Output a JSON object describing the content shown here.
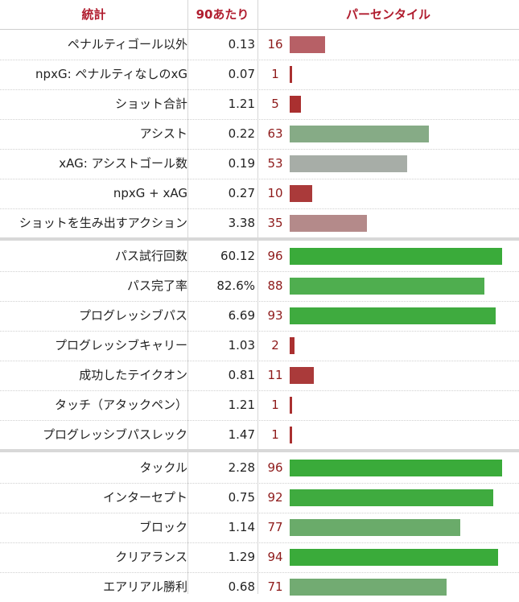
{
  "header": {
    "stat": "統計",
    "per90": "90あたり",
    "percentile": "パーセンタイル"
  },
  "colors": {
    "header_text": "#b01c2e",
    "percentile_text": "#8e1a1a"
  },
  "sections": [
    {
      "rows": [
        {
          "stat": "ペナルティゴール以外",
          "per90": "0.13",
          "percentile": 16,
          "bar_color": "#b76066"
        },
        {
          "stat": "npxG: ペナルティなしのxG",
          "per90": "0.07",
          "percentile": 1,
          "bar_color": "#aa3030"
        },
        {
          "stat": "ショット合計",
          "per90": "1.21",
          "percentile": 5,
          "bar_color": "#aa3030"
        },
        {
          "stat": "アシスト",
          "per90": "0.22",
          "percentile": 63,
          "bar_color": "#86ab86"
        },
        {
          "stat": "xAG: アシストゴール数",
          "per90": "0.19",
          "percentile": 53,
          "bar_color": "#a7ada7"
        },
        {
          "stat": "npxG + xAG",
          "per90": "0.27",
          "percentile": 10,
          "bar_color": "#aa3a3a"
        },
        {
          "stat": "ショットを生み出すアクション",
          "per90": "3.38",
          "percentile": 35,
          "bar_color": "#b48a8a"
        }
      ]
    },
    {
      "rows": [
        {
          "stat": "パス試行回数",
          "per90": "60.12",
          "percentile": 96,
          "bar_color": "#3aab3a"
        },
        {
          "stat": "パス完了率",
          "per90": "82.6%",
          "percentile": 88,
          "bar_color": "#4fae4f"
        },
        {
          "stat": "プログレッシブパス",
          "per90": "6.69",
          "percentile": 93,
          "bar_color": "#3fab3f"
        },
        {
          "stat": "プログレッシブキャリー",
          "per90": "1.03",
          "percentile": 2,
          "bar_color": "#aa3030"
        },
        {
          "stat": "成功したテイクオン",
          "per90": "0.81",
          "percentile": 11,
          "bar_color": "#aa3a3a"
        },
        {
          "stat": "タッチ（アタックペン）",
          "per90": "1.21",
          "percentile": 1,
          "bar_color": "#aa3030"
        },
        {
          "stat": "プログレッシブパスレック",
          "per90": "1.47",
          "percentile": 1,
          "bar_color": "#aa3030"
        }
      ]
    },
    {
      "rows": [
        {
          "stat": "タックル",
          "per90": "2.28",
          "percentile": 96,
          "bar_color": "#3aab3a"
        },
        {
          "stat": "インターセプト",
          "per90": "0.75",
          "percentile": 92,
          "bar_color": "#3fab3f"
        },
        {
          "stat": "ブロック",
          "per90": "1.14",
          "percentile": 77,
          "bar_color": "#6aab6a"
        },
        {
          "stat": "クリアランス",
          "per90": "1.29",
          "percentile": 94,
          "bar_color": "#3aab3a"
        },
        {
          "stat": "エアリアル勝利",
          "per90": "0.68",
          "percentile": 71,
          "bar_color": "#72ab72"
        }
      ]
    }
  ]
}
